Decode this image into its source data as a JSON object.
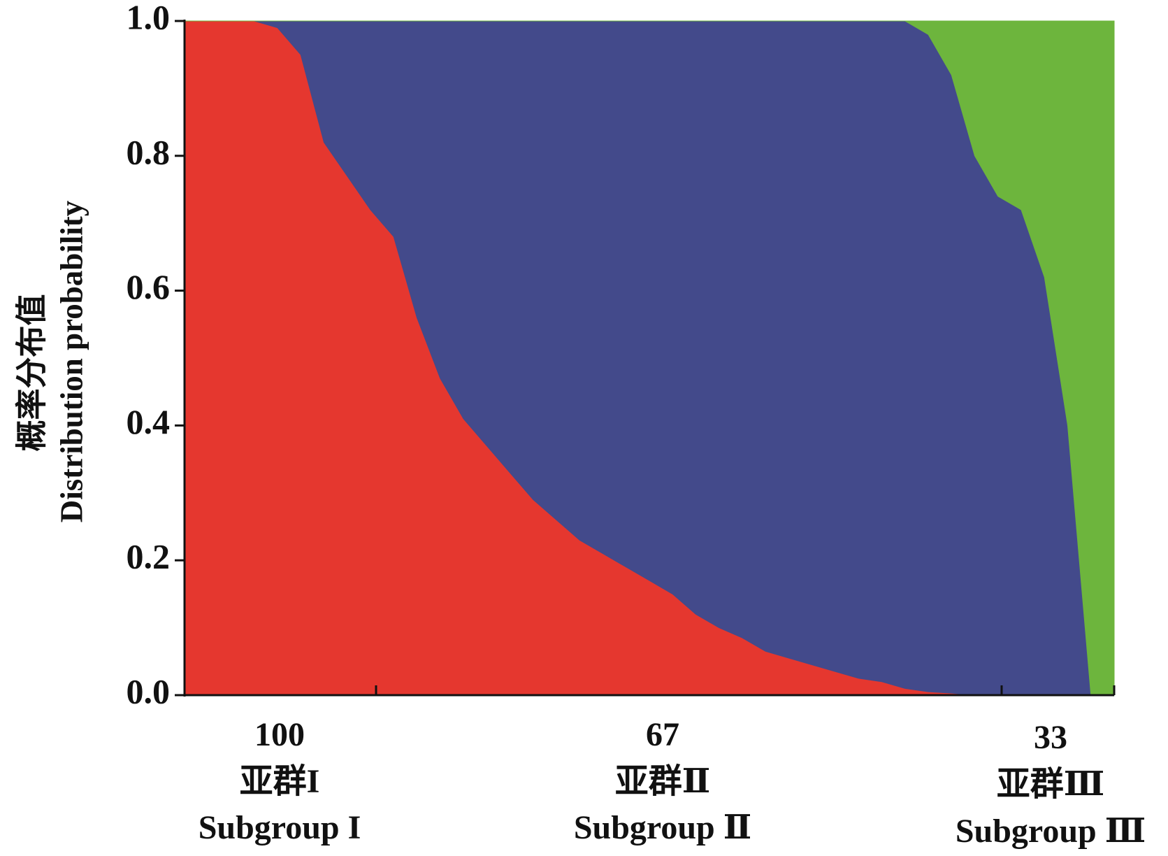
{
  "chart_data": {
    "type": "stacked_area",
    "ylabel": [
      "概率分布值",
      "Distribution probability"
    ],
    "ylim": [
      0,
      1
    ],
    "yticks": [
      {
        "value": 0,
        "label": "0.0"
      },
      {
        "value": 0.2,
        "label": "0.2"
      },
      {
        "value": 0.4,
        "label": "0.4"
      },
      {
        "value": 0.6,
        "label": "0.6"
      },
      {
        "value": 0.8,
        "label": "0.8"
      },
      {
        "value": 1,
        "label": "1.0"
      }
    ],
    "groups": [
      {
        "size": 100,
        "name": "亚群I",
        "name_en": "Subgroup I"
      },
      {
        "size": 67,
        "name": "亚群Ⅱ",
        "name_en": "Subgroup Ⅱ"
      },
      {
        "size": 33,
        "name": "亚群Ⅲ",
        "name_en": "Subgroup Ⅲ"
      }
    ],
    "series": [
      {
        "color": "#e5372f",
        "values": [
          1,
          1,
          1,
          1,
          0.99,
          0.95,
          0.82,
          0.77,
          0.72,
          0.68,
          0.56,
          0.47,
          0.41,
          0.37,
          0.33,
          0.29,
          0.26,
          0.23,
          0.21,
          0.19,
          0.17,
          0.15,
          0.12,
          0.1,
          0.085,
          0.065,
          0.055,
          0.045,
          0.035,
          0.025,
          0.02,
          0.01,
          0.005,
          0.003,
          0,
          0,
          0,
          0,
          0,
          0,
          0
        ]
      },
      {
        "color": "#434a8b",
        "values": [
          0,
          0,
          0,
          0,
          0.01,
          0.05,
          0.18,
          0.23,
          0.28,
          0.32,
          0.44,
          0.53,
          0.59,
          0.63,
          0.67,
          0.71,
          0.74,
          0.77,
          0.79,
          0.81,
          0.83,
          0.85,
          0.88,
          0.9,
          0.915,
          0.935,
          0.945,
          0.955,
          0.965,
          0.975,
          0.98,
          0.99,
          0.975,
          0.917,
          0.8,
          0.74,
          0.72,
          0.62,
          0.4,
          0,
          0
        ]
      },
      {
        "color": "#6db53d",
        "values": [
          0,
          0,
          0,
          0,
          0,
          0,
          0,
          0,
          0,
          0,
          0,
          0,
          0,
          0,
          0,
          0,
          0,
          0,
          0,
          0,
          0,
          0,
          0,
          0,
          0,
          0,
          0,
          0,
          0,
          0,
          0,
          0,
          0.02,
          0.08,
          0.2,
          0.26,
          0.28,
          0.38,
          0.6,
          1,
          1
        ]
      }
    ]
  }
}
